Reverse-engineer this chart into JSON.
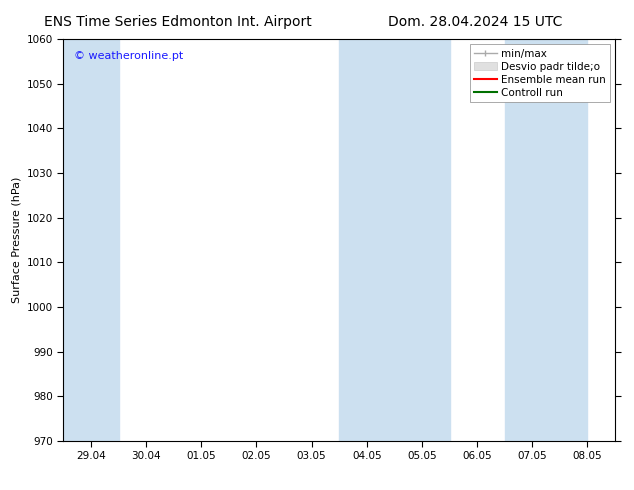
{
  "title_left": "ENS Time Series Edmonton Int. Airport",
  "title_right": "Dom. 28.04.2024 15 UTC",
  "ylabel": "Surface Pressure (hPa)",
  "ylim": [
    970,
    1060
  ],
  "yticks": [
    970,
    980,
    990,
    1000,
    1010,
    1020,
    1030,
    1040,
    1050,
    1060
  ],
  "xtick_labels": [
    "29.04",
    "30.04",
    "01.05",
    "02.05",
    "03.05",
    "04.05",
    "05.05",
    "06.05",
    "07.05",
    "08.05"
  ],
  "watermark": "© weatheronline.pt",
  "watermark_color": "#1a1aff",
  "bg_color": "#ffffff",
  "plot_bg_color": "#ffffff",
  "shaded_bands": [
    {
      "xstart": -0.5,
      "xend": 0.5,
      "color": "#cce0f0"
    },
    {
      "xstart": 4.5,
      "xend": 6.5,
      "color": "#cce0f0"
    },
    {
      "xstart": 7.5,
      "xend": 9.0,
      "color": "#cce0f0"
    }
  ],
  "title_fontsize": 10,
  "axis_fontsize": 8,
  "tick_fontsize": 7.5,
  "legend_fontsize": 7.5
}
